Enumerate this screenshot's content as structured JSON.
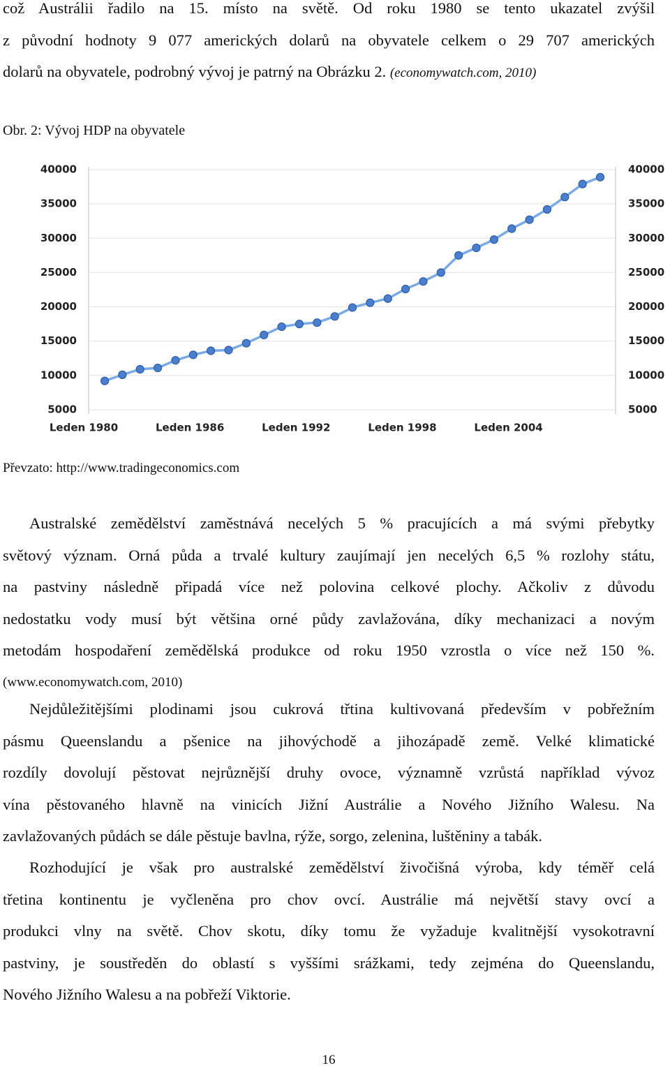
{
  "intro": {
    "lines": [
      "což Austrálii řadilo na 15. místo na světě. Od roku 1980 se tento ukazatel zvýšil",
      "z původní hodnoty 9 077 amerických dolarů na obyvatele celkem o 29 707 amerických",
      "dolarů na obyvatele, podrobný vývoj je patrný na Obrázku 2."
    ],
    "cite": "(economywatch.com, 2010)"
  },
  "figure": {
    "caption": "Obr. 2: Vývoj HDP na obyvatele",
    "source": "Převzato: http://www.tradingeconomics.com"
  },
  "chart_data": {
    "type": "line",
    "color": "#4a7fd0",
    "categories": [
      "Leden 1980",
      null,
      null,
      null,
      null,
      null,
      "Leden 1986",
      null,
      null,
      null,
      null,
      null,
      "Leden 1992",
      null,
      null,
      null,
      null,
      null,
      "Leden 1998",
      null,
      null,
      null,
      null,
      null,
      "Leden 2004",
      null,
      null,
      null,
      null
    ],
    "values": [
      9200,
      10100,
      10900,
      11100,
      12200,
      13000,
      13600,
      13700,
      14700,
      15900,
      17100,
      17500,
      17700,
      18600,
      19900,
      20600,
      21200,
      22600,
      23700,
      25000,
      27500,
      28600,
      29800,
      31400,
      32700,
      34200,
      36000,
      37900,
      38900
    ],
    "ylim": [
      5000,
      40000
    ],
    "yticks": [
      5000,
      10000,
      15000,
      20000,
      25000,
      30000,
      35000,
      40000
    ],
    "grid": true
  },
  "paragraphs": [
    {
      "lines": [
        "Australské zemědělství zaměstnává necelých 5 % pracujících a má svými přebytky",
        "světový význam. Orná půda a trvalé kultury zaujímají jen necelých 6,5 % rozlohy státu,",
        "na pastviny následně připadá více než polovina celkové plochy. Ačkoliv z důvodu",
        "nedostatku vody musí být většina orné půdy zavlažována, díky mechanizaci a novým",
        "metodám hospodaření zemědělská produkce od roku 1950 vzrostla o více než 150 %."
      ],
      "cite": "(www.economywatch.com, 2010)"
    },
    {
      "lines": [
        "Nejdůležitějšími plodinami jsou cukrová třtina kultivovaná především v pobřežním",
        "pásmu Queenslandu a pšenice na jihovýchodě a jihozápadě země. Velké klimatické",
        "rozdíly dovolují pěstovat nejrůznější druhy ovoce, významně vzrůstá například vývoz",
        "vína pěstovaného hlavně na vinicích Jižní Austrálie a Nového Jižního Walesu. Na",
        "zavlažovaných půdách se dále pěstuje bavlna, rýže, sorgo, zelenina, luštěniny a tabák."
      ]
    },
    {
      "lines": [
        "Rozhodující je však pro australské zemědělství živočišná výroba, kdy téměř celá",
        "třetina kontinentu je vyčleněna pro chov ovcí. Austrálie má největší stavy ovcí a",
        "produkci vlny na světě. Chov skotu, díky tomu že vyžaduje kvalitnější vysokotravní",
        "pastviny, je soustředěn do oblastí s vyššími srážkami, tedy zejména do Queenslandu,",
        "Nového Jižního Walesu a na pobřeží Viktorie."
      ]
    }
  ],
  "page_number": "16"
}
